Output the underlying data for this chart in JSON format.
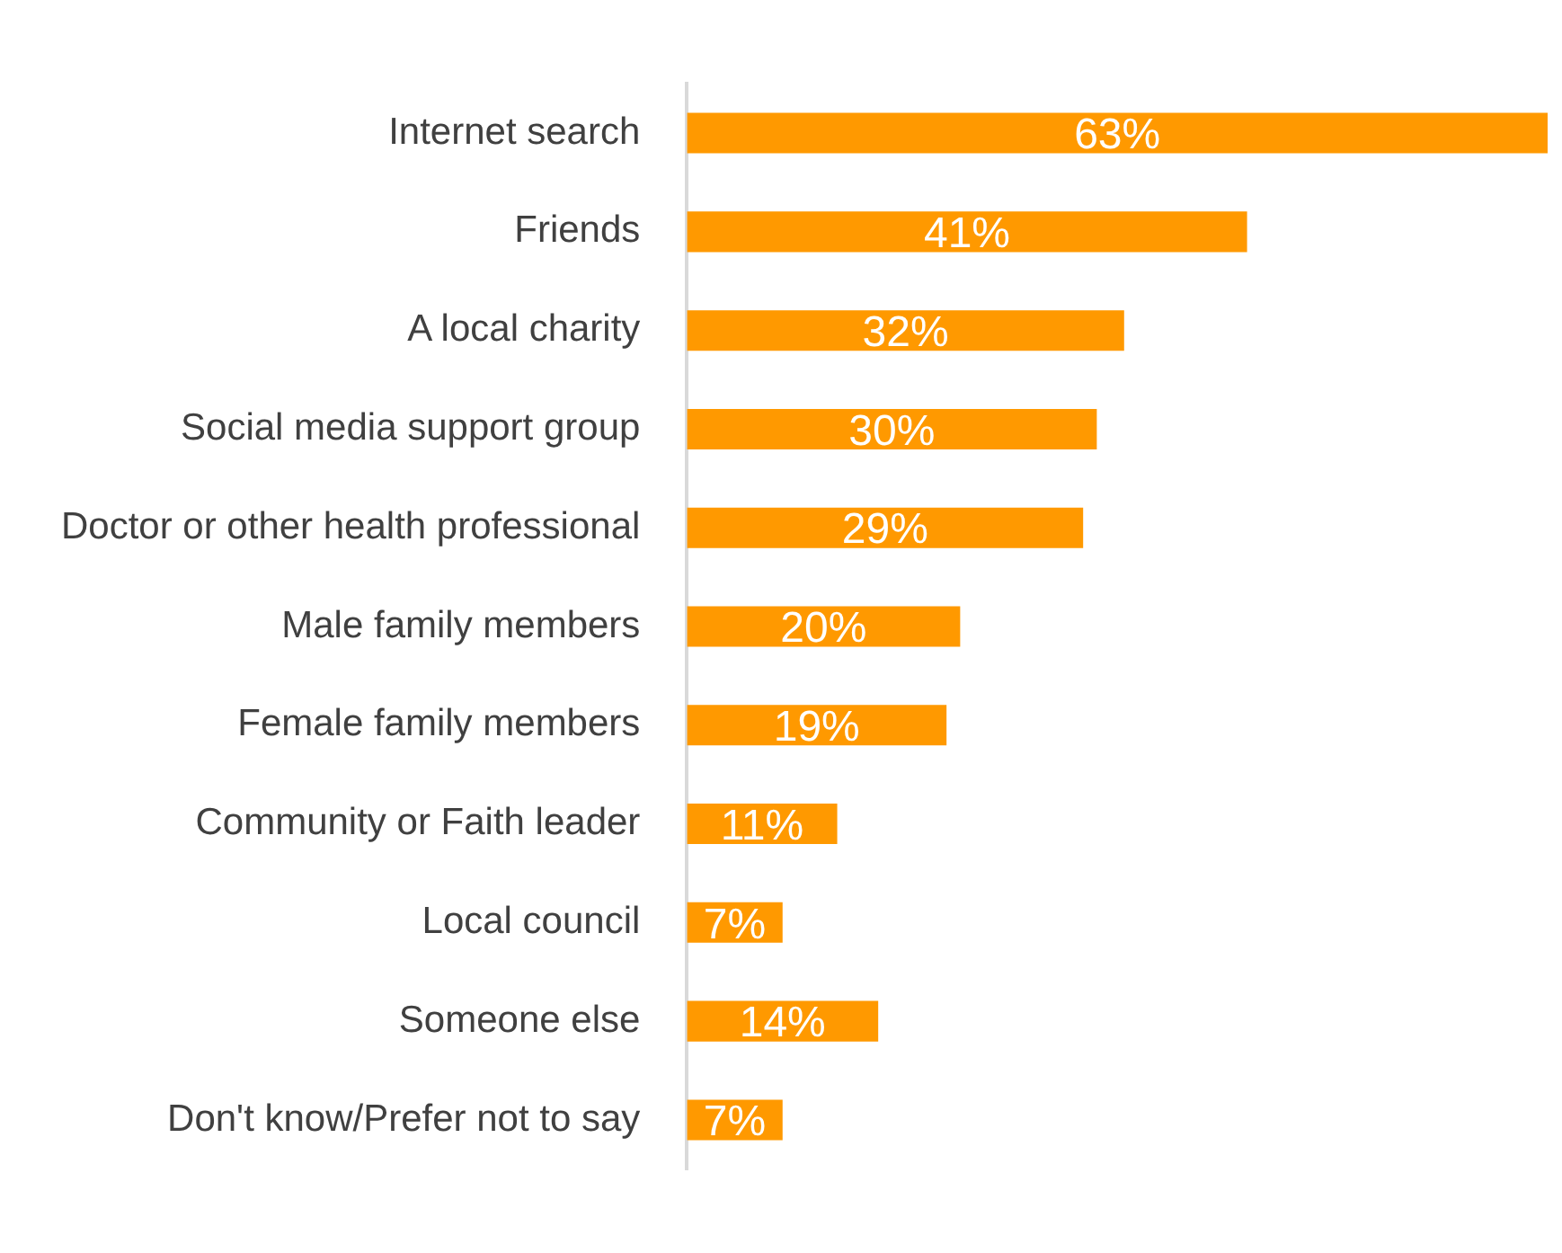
{
  "chart_data": {
    "type": "bar",
    "orientation": "horizontal",
    "categories": [
      "Internet search",
      "Friends",
      "A local charity",
      "Social media support group",
      "Doctor or other health professional",
      "Male family members",
      "Female family members",
      "Community or Faith leader",
      "Local council",
      "Someone else",
      "Don't know/Prefer not to say"
    ],
    "values": [
      63,
      41,
      32,
      30,
      29,
      20,
      19,
      11,
      7,
      14,
      7
    ],
    "value_labels": [
      "63%",
      "41%",
      "32%",
      "30%",
      "29%",
      "20%",
      "19%",
      "11%",
      "7%",
      "14%",
      "7%"
    ],
    "color": "#ff9900",
    "grid": false,
    "legend": false
  }
}
